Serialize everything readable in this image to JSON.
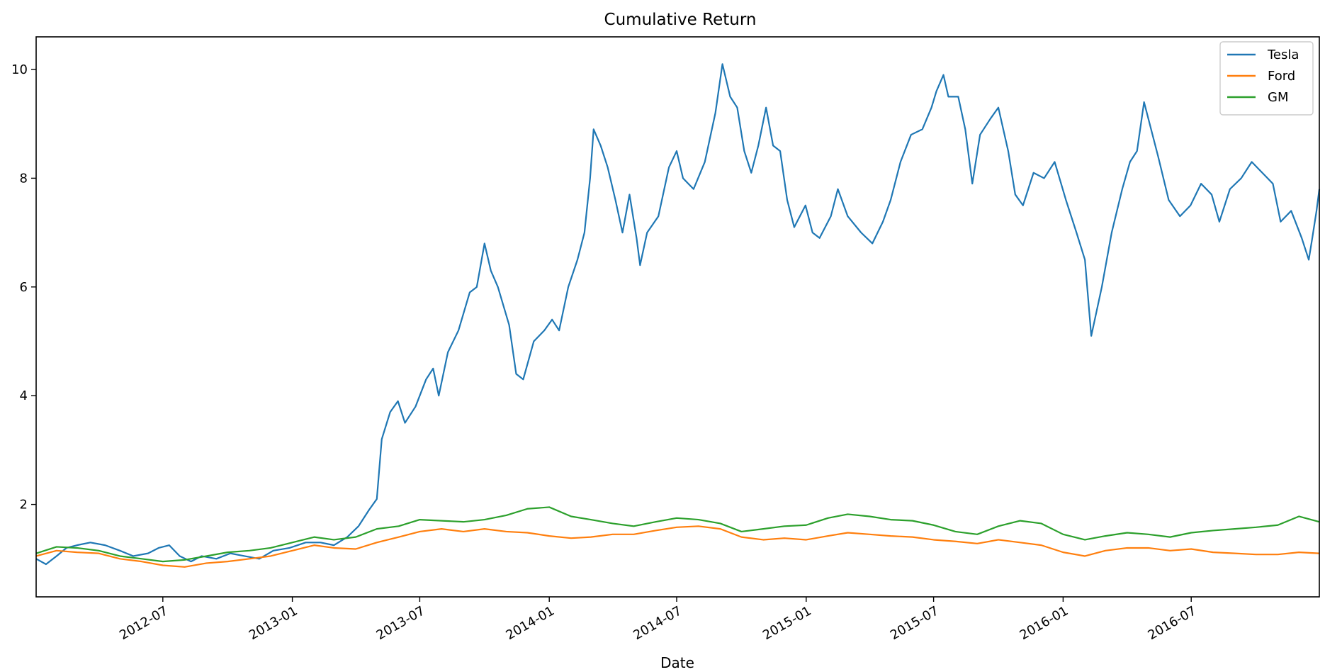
{
  "chart_data": {
    "type": "line",
    "title": "Cumulative Return",
    "xlabel": "Date",
    "ylabel": "",
    "x_range": [
      "2012-01-03",
      "2016-12-30"
    ],
    "y_range": [
      0.3,
      10.6
    ],
    "x_ticks": [
      "2012-07",
      "2013-01",
      "2013-07",
      "2014-01",
      "2014-07",
      "2015-01",
      "2015-07",
      "2016-01",
      "2016-07"
    ],
    "y_ticks": [
      2,
      4,
      6,
      8,
      10
    ],
    "grid": false,
    "legend_position": "top-right",
    "series": [
      {
        "name": "Tesla",
        "color": "#1f77b4",
        "points": [
          [
            "2012-01-03",
            1.0
          ],
          [
            "2012-01-17",
            0.9
          ],
          [
            "2012-02-01",
            1.05
          ],
          [
            "2012-02-15",
            1.2
          ],
          [
            "2012-03-01",
            1.25
          ],
          [
            "2012-03-20",
            1.3
          ],
          [
            "2012-04-10",
            1.25
          ],
          [
            "2012-05-01",
            1.15
          ],
          [
            "2012-05-20",
            1.05
          ],
          [
            "2012-06-10",
            1.1
          ],
          [
            "2012-06-25",
            1.2
          ],
          [
            "2012-07-10",
            1.25
          ],
          [
            "2012-07-25",
            1.05
          ],
          [
            "2012-08-10",
            0.95
          ],
          [
            "2012-08-25",
            1.05
          ],
          [
            "2012-09-15",
            1.0
          ],
          [
            "2012-10-05",
            1.1
          ],
          [
            "2012-10-25",
            1.05
          ],
          [
            "2012-11-15",
            1.0
          ],
          [
            "2012-12-05",
            1.15
          ],
          [
            "2012-12-28",
            1.2
          ],
          [
            "2013-01-20",
            1.3
          ],
          [
            "2013-02-10",
            1.3
          ],
          [
            "2013-03-01",
            1.25
          ],
          [
            "2013-03-20",
            1.4
          ],
          [
            "2013-04-05",
            1.6
          ],
          [
            "2013-04-20",
            1.9
          ],
          [
            "2013-05-01",
            2.1
          ],
          [
            "2013-05-08",
            3.2
          ],
          [
            "2013-05-20",
            3.7
          ],
          [
            "2013-05-31",
            3.9
          ],
          [
            "2013-06-10",
            3.5
          ],
          [
            "2013-06-25",
            3.8
          ],
          [
            "2013-07-10",
            4.3
          ],
          [
            "2013-07-20",
            4.5
          ],
          [
            "2013-07-28",
            4.0
          ],
          [
            "2013-08-10",
            4.8
          ],
          [
            "2013-08-25",
            5.2
          ],
          [
            "2013-09-10",
            5.9
          ],
          [
            "2013-09-20",
            6.0
          ],
          [
            "2013-10-01",
            6.8
          ],
          [
            "2013-10-10",
            6.3
          ],
          [
            "2013-10-20",
            6.0
          ],
          [
            "2013-11-05",
            5.3
          ],
          [
            "2013-11-15",
            4.4
          ],
          [
            "2013-11-25",
            4.3
          ],
          [
            "2013-12-10",
            5.0
          ],
          [
            "2013-12-25",
            5.2
          ],
          [
            "2014-01-05",
            5.4
          ],
          [
            "2014-01-15",
            5.2
          ],
          [
            "2014-01-28",
            6.0
          ],
          [
            "2014-02-10",
            6.5
          ],
          [
            "2014-02-20",
            7.0
          ],
          [
            "2014-02-28",
            8.0
          ],
          [
            "2014-03-05",
            8.9
          ],
          [
            "2014-03-15",
            8.6
          ],
          [
            "2014-03-25",
            8.2
          ],
          [
            "2014-04-05",
            7.6
          ],
          [
            "2014-04-15",
            7.0
          ],
          [
            "2014-04-25",
            7.7
          ],
          [
            "2014-05-05",
            6.9
          ],
          [
            "2014-05-10",
            6.4
          ],
          [
            "2014-05-20",
            7.0
          ],
          [
            "2014-06-05",
            7.3
          ],
          [
            "2014-06-20",
            8.2
          ],
          [
            "2014-07-01",
            8.5
          ],
          [
            "2014-07-10",
            8.0
          ],
          [
            "2014-07-25",
            7.8
          ],
          [
            "2014-08-10",
            8.3
          ],
          [
            "2014-08-25",
            9.2
          ],
          [
            "2014-09-04",
            10.1
          ],
          [
            "2014-09-15",
            9.5
          ],
          [
            "2014-09-25",
            9.3
          ],
          [
            "2014-10-05",
            8.5
          ],
          [
            "2014-10-15",
            8.1
          ],
          [
            "2014-10-25",
            8.6
          ],
          [
            "2014-11-05",
            9.3
          ],
          [
            "2014-11-15",
            8.6
          ],
          [
            "2014-11-25",
            8.5
          ],
          [
            "2014-12-05",
            7.6
          ],
          [
            "2014-12-15",
            7.1
          ],
          [
            "2014-12-31",
            7.5
          ],
          [
            "2015-01-10",
            7.0
          ],
          [
            "2015-01-20",
            6.9
          ],
          [
            "2015-02-05",
            7.3
          ],
          [
            "2015-02-15",
            7.8
          ],
          [
            "2015-03-01",
            7.3
          ],
          [
            "2015-03-20",
            7.0
          ],
          [
            "2015-04-05",
            6.8
          ],
          [
            "2015-04-20",
            7.2
          ],
          [
            "2015-05-01",
            7.6
          ],
          [
            "2015-05-15",
            8.3
          ],
          [
            "2015-05-30",
            8.8
          ],
          [
            "2015-06-15",
            8.9
          ],
          [
            "2015-06-28",
            9.3
          ],
          [
            "2015-07-05",
            9.6
          ],
          [
            "2015-07-15",
            9.9
          ],
          [
            "2015-07-22",
            9.5
          ],
          [
            "2015-08-05",
            9.5
          ],
          [
            "2015-08-15",
            8.9
          ],
          [
            "2015-08-25",
            7.9
          ],
          [
            "2015-09-05",
            8.8
          ],
          [
            "2015-09-20",
            9.1
          ],
          [
            "2015-10-01",
            9.3
          ],
          [
            "2015-10-15",
            8.5
          ],
          [
            "2015-10-25",
            7.7
          ],
          [
            "2015-11-05",
            7.5
          ],
          [
            "2015-11-20",
            8.1
          ],
          [
            "2015-12-05",
            8.0
          ],
          [
            "2015-12-20",
            8.3
          ],
          [
            "2016-01-05",
            7.6
          ],
          [
            "2016-01-20",
            7.0
          ],
          [
            "2016-02-01",
            6.5
          ],
          [
            "2016-02-10",
            5.1
          ],
          [
            "2016-02-25",
            6.0
          ],
          [
            "2016-03-10",
            7.0
          ],
          [
            "2016-03-25",
            7.8
          ],
          [
            "2016-04-05",
            8.3
          ],
          [
            "2016-04-15",
            8.5
          ],
          [
            "2016-04-25",
            9.4
          ],
          [
            "2016-05-05",
            8.9
          ],
          [
            "2016-05-15",
            8.4
          ],
          [
            "2016-05-30",
            7.6
          ],
          [
            "2016-06-15",
            7.3
          ],
          [
            "2016-06-30",
            7.5
          ],
          [
            "2016-07-15",
            7.9
          ],
          [
            "2016-07-30",
            7.7
          ],
          [
            "2016-08-10",
            7.2
          ],
          [
            "2016-08-25",
            7.8
          ],
          [
            "2016-09-10",
            8.0
          ],
          [
            "2016-09-25",
            8.3
          ],
          [
            "2016-10-10",
            8.1
          ],
          [
            "2016-10-25",
            7.9
          ],
          [
            "2016-11-05",
            7.2
          ],
          [
            "2016-11-20",
            7.4
          ],
          [
            "2016-12-05",
            6.9
          ],
          [
            "2016-12-15",
            6.5
          ],
          [
            "2016-12-20",
            6.9
          ],
          [
            "2016-12-26",
            7.4
          ],
          [
            "2016-12-30",
            7.8
          ]
        ]
      },
      {
        "name": "Ford",
        "color": "#ff7f0e",
        "points": [
          [
            "2012-01-03",
            1.05
          ],
          [
            "2012-02-01",
            1.15
          ],
          [
            "2012-03-01",
            1.12
          ],
          [
            "2012-04-01",
            1.1
          ],
          [
            "2012-05-01",
            1.0
          ],
          [
            "2012-06-01",
            0.95
          ],
          [
            "2012-07-01",
            0.88
          ],
          [
            "2012-08-01",
            0.85
          ],
          [
            "2012-09-01",
            0.92
          ],
          [
            "2012-10-01",
            0.95
          ],
          [
            "2012-11-01",
            1.0
          ],
          [
            "2012-12-01",
            1.05
          ],
          [
            "2013-01-01",
            1.15
          ],
          [
            "2013-02-01",
            1.25
          ],
          [
            "2013-03-01",
            1.2
          ],
          [
            "2013-04-01",
            1.18
          ],
          [
            "2013-05-01",
            1.3
          ],
          [
            "2013-06-01",
            1.4
          ],
          [
            "2013-07-01",
            1.5
          ],
          [
            "2013-08-01",
            1.55
          ],
          [
            "2013-09-01",
            1.5
          ],
          [
            "2013-10-01",
            1.55
          ],
          [
            "2013-11-01",
            1.5
          ],
          [
            "2013-12-01",
            1.48
          ],
          [
            "2014-01-01",
            1.42
          ],
          [
            "2014-02-01",
            1.38
          ],
          [
            "2014-03-01",
            1.4
          ],
          [
            "2014-04-01",
            1.45
          ],
          [
            "2014-05-01",
            1.45
          ],
          [
            "2014-06-01",
            1.52
          ],
          [
            "2014-07-01",
            1.58
          ],
          [
            "2014-08-01",
            1.6
          ],
          [
            "2014-09-01",
            1.55
          ],
          [
            "2014-10-01",
            1.4
          ],
          [
            "2014-11-01",
            1.35
          ],
          [
            "2014-12-01",
            1.38
          ],
          [
            "2015-01-01",
            1.35
          ],
          [
            "2015-02-01",
            1.42
          ],
          [
            "2015-03-01",
            1.48
          ],
          [
            "2015-04-01",
            1.45
          ],
          [
            "2015-05-01",
            1.42
          ],
          [
            "2015-06-01",
            1.4
          ],
          [
            "2015-07-01",
            1.35
          ],
          [
            "2015-08-01",
            1.32
          ],
          [
            "2015-09-01",
            1.28
          ],
          [
            "2015-10-01",
            1.35
          ],
          [
            "2015-11-01",
            1.3
          ],
          [
            "2015-12-01",
            1.25
          ],
          [
            "2016-01-01",
            1.12
          ],
          [
            "2016-02-01",
            1.05
          ],
          [
            "2016-03-01",
            1.15
          ],
          [
            "2016-04-01",
            1.2
          ],
          [
            "2016-05-01",
            1.2
          ],
          [
            "2016-06-01",
            1.15
          ],
          [
            "2016-07-01",
            1.18
          ],
          [
            "2016-08-01",
            1.12
          ],
          [
            "2016-09-01",
            1.1
          ],
          [
            "2016-10-01",
            1.08
          ],
          [
            "2016-11-01",
            1.08
          ],
          [
            "2016-12-01",
            1.12
          ],
          [
            "2016-12-30",
            1.1
          ]
        ]
      },
      {
        "name": "GM",
        "color": "#2ca02c",
        "points": [
          [
            "2012-01-03",
            1.1
          ],
          [
            "2012-02-01",
            1.22
          ],
          [
            "2012-03-01",
            1.2
          ],
          [
            "2012-04-01",
            1.15
          ],
          [
            "2012-05-01",
            1.05
          ],
          [
            "2012-06-01",
            1.0
          ],
          [
            "2012-07-01",
            0.95
          ],
          [
            "2012-08-01",
            0.98
          ],
          [
            "2012-09-01",
            1.05
          ],
          [
            "2012-10-01",
            1.12
          ],
          [
            "2012-11-01",
            1.15
          ],
          [
            "2012-12-01",
            1.2
          ],
          [
            "2013-01-01",
            1.3
          ],
          [
            "2013-02-01",
            1.4
          ],
          [
            "2013-03-01",
            1.35
          ],
          [
            "2013-04-01",
            1.4
          ],
          [
            "2013-05-01",
            1.55
          ],
          [
            "2013-06-01",
            1.6
          ],
          [
            "2013-07-01",
            1.72
          ],
          [
            "2013-08-01",
            1.7
          ],
          [
            "2013-09-01",
            1.68
          ],
          [
            "2013-10-01",
            1.72
          ],
          [
            "2013-11-01",
            1.8
          ],
          [
            "2013-12-01",
            1.92
          ],
          [
            "2014-01-01",
            1.95
          ],
          [
            "2014-02-01",
            1.78
          ],
          [
            "2014-03-01",
            1.72
          ],
          [
            "2014-04-01",
            1.65
          ],
          [
            "2014-05-01",
            1.6
          ],
          [
            "2014-06-01",
            1.68
          ],
          [
            "2014-07-01",
            1.75
          ],
          [
            "2014-08-01",
            1.72
          ],
          [
            "2014-09-01",
            1.65
          ],
          [
            "2014-10-01",
            1.5
          ],
          [
            "2014-11-01",
            1.55
          ],
          [
            "2014-12-01",
            1.6
          ],
          [
            "2015-01-01",
            1.62
          ],
          [
            "2015-02-01",
            1.75
          ],
          [
            "2015-03-01",
            1.82
          ],
          [
            "2015-04-01",
            1.78
          ],
          [
            "2015-05-01",
            1.72
          ],
          [
            "2015-06-01",
            1.7
          ],
          [
            "2015-07-01",
            1.62
          ],
          [
            "2015-08-01",
            1.5
          ],
          [
            "2015-09-01",
            1.45
          ],
          [
            "2015-10-01",
            1.6
          ],
          [
            "2015-11-01",
            1.7
          ],
          [
            "2015-12-01",
            1.65
          ],
          [
            "2016-01-01",
            1.45
          ],
          [
            "2016-02-01",
            1.35
          ],
          [
            "2016-03-01",
            1.42
          ],
          [
            "2016-04-01",
            1.48
          ],
          [
            "2016-05-01",
            1.45
          ],
          [
            "2016-06-01",
            1.4
          ],
          [
            "2016-07-01",
            1.48
          ],
          [
            "2016-08-01",
            1.52
          ],
          [
            "2016-09-01",
            1.55
          ],
          [
            "2016-10-01",
            1.58
          ],
          [
            "2016-11-01",
            1.62
          ],
          [
            "2016-12-01",
            1.78
          ],
          [
            "2016-12-30",
            1.68
          ]
        ]
      }
    ]
  }
}
